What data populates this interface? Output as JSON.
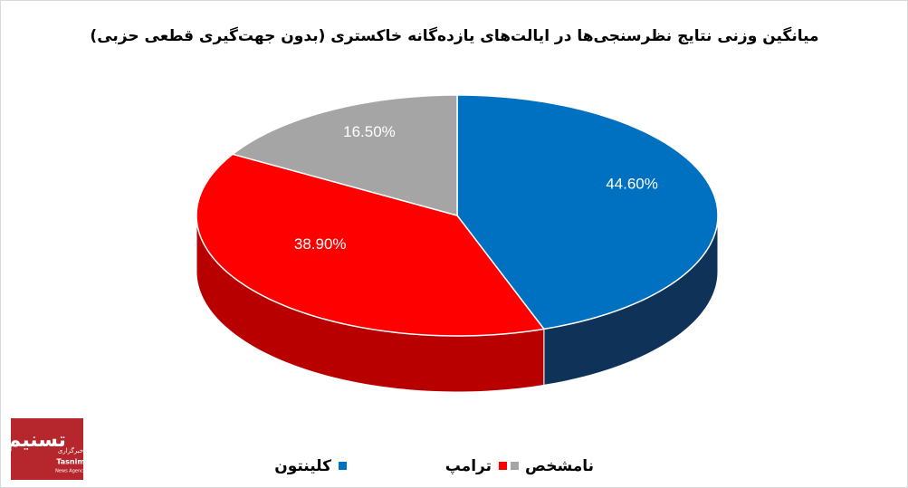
{
  "chart_data": {
    "type": "pie3d",
    "title": "میانگین وزنی نتایج نظرسنجی‌ها در ایالت‌های یازده‌گانه خاکستری (بدون جهت‌گیری قطعی حزبی)",
    "categories": [
      "کلینتون",
      "ترامپ",
      "نامشخص"
    ],
    "values": [
      44.6,
      38.9,
      16.5
    ],
    "value_labels": [
      "44.60%",
      "38.90%",
      "16.50%"
    ],
    "colors": [
      "#0070c0",
      "#ff0000",
      "#a5a5a5"
    ],
    "side_colors": [
      "#0f3358",
      "#b80000",
      "#7a7a7a"
    ],
    "legend": "bottom"
  },
  "logo": {
    "mark": "تسنیم",
    "line1": "خبرگزاری",
    "line2": "Tasnim",
    "line3": "News Agency"
  }
}
